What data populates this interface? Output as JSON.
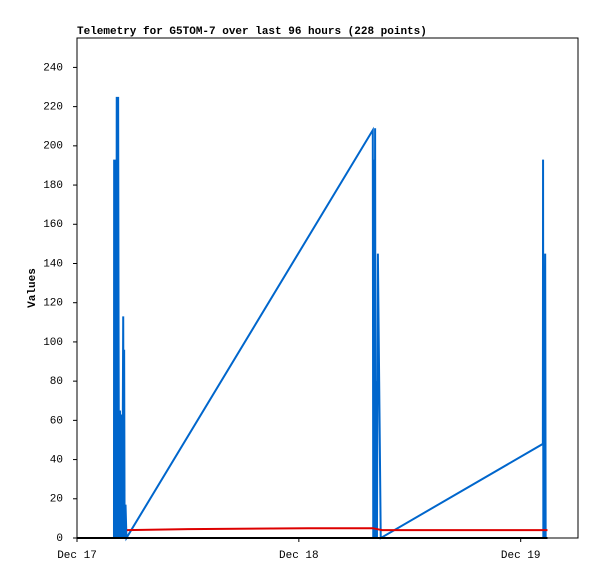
{
  "chart_data": {
    "type": "line",
    "title": "Telemetry for G5TOM-7 over last 96 hours (228 points)",
    "y_label": "Values",
    "xlim": [
      0,
      54.2
    ],
    "xticks": [
      {
        "value": 0,
        "label": "Dec 17"
      },
      {
        "value": 24,
        "label": "Dec 18"
      },
      {
        "value": 48,
        "label": "Dec 19"
      }
    ],
    "ylim": [
      0,
      255
    ],
    "yticks": [
      0,
      20,
      40,
      60,
      80,
      100,
      120,
      140,
      160,
      180,
      200,
      220,
      240
    ],
    "series": [
      {
        "color": "#0066cc",
        "x": [
          4.0,
          4.02,
          4.1,
          4.15,
          4.2,
          4.25,
          4.3,
          4.38,
          4.45,
          4.5,
          4.55,
          4.65,
          4.75,
          4.85,
          4.9,
          5.0,
          5.05,
          5.1,
          5.15,
          5.25,
          5.35,
          32.0,
          32.05,
          32.1,
          32.15,
          32.2,
          32.25,
          32.3,
          32.4,
          32.45,
          32.55,
          32.86,
          50.4,
          50.42,
          50.45,
          50.5,
          50.55,
          50.65,
          50.7
        ],
        "values": [
          0,
          193,
          0,
          97,
          193,
          0,
          225,
          0,
          225,
          97,
          0,
          65,
          0,
          63,
          0,
          113,
          0,
          96,
          0,
          17,
          0,
          208,
          0,
          193,
          0,
          33,
          209,
          0,
          80,
          0,
          145,
          0,
          48,
          193,
          0,
          104,
          0,
          145,
          0
        ]
      },
      {
        "color": "#dd0000",
        "x": [
          5.4,
          12.0,
          25.0,
          32.0,
          33.0,
          50.9
        ],
        "values": [
          4,
          4.5,
          5,
          5,
          4,
          4
        ]
      },
      {
        "color": "#000000",
        "x": [
          0,
          50.9
        ],
        "values": [
          0,
          0
        ]
      }
    ]
  }
}
